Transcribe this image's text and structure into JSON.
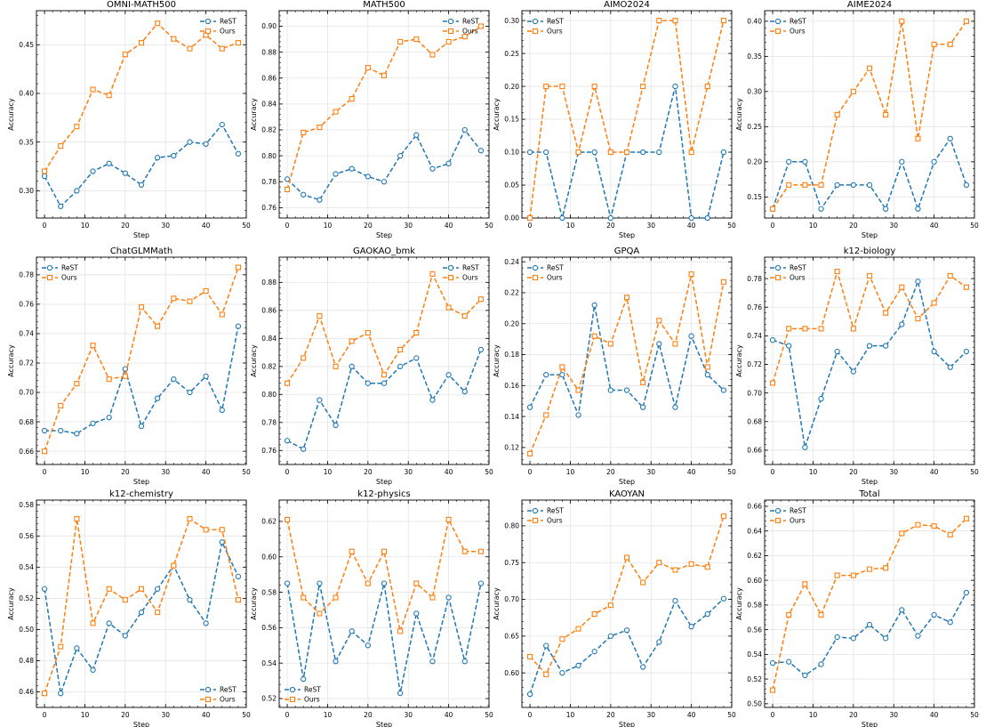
{
  "series_names": [
    "ReST",
    "Ours"
  ],
  "colors": {
    "rest": "#1f77b4",
    "ours": "#ff7f0e"
  },
  "chart_data": [
    {
      "type": "line",
      "title": "OMNI-MATH500",
      "xlabel": "Step",
      "ylabel": "Accuracy",
      "xlim": [
        -2,
        50
      ],
      "ylim": [
        0.272,
        0.485
      ],
      "xticks": [
        0,
        10,
        20,
        30,
        40,
        50
      ],
      "yticks": [
        0.3,
        0.35,
        0.4,
        0.45
      ],
      "ydecimals": 2,
      "legend": "top-right",
      "grid": true,
      "x": [
        0,
        4,
        8,
        12,
        16,
        20,
        24,
        28,
        32,
        36,
        40,
        44,
        48
      ],
      "series": [
        {
          "name": "ReST",
          "values": [
            0.315,
            0.284,
            0.3,
            0.32,
            0.328,
            0.318,
            0.306,
            0.334,
            0.336,
            0.35,
            0.348,
            0.368,
            0.338
          ]
        },
        {
          "name": "Ours",
          "values": [
            0.32,
            0.346,
            0.366,
            0.404,
            0.398,
            0.44,
            0.452,
            0.472,
            0.456,
            0.446,
            0.46,
            0.446,
            0.452
          ]
        }
      ]
    },
    {
      "type": "line",
      "title": "MATH500",
      "xlabel": "Step",
      "ylabel": "Accuracy",
      "xlim": [
        -2,
        50
      ],
      "ylim": [
        0.752,
        0.912
      ],
      "xticks": [
        0,
        10,
        20,
        30,
        40,
        50
      ],
      "yticks": [
        0.76,
        0.78,
        0.8,
        0.82,
        0.84,
        0.86,
        0.88,
        0.9
      ],
      "ydecimals": 2,
      "legend": "top-right",
      "grid": true,
      "x": [
        0,
        4,
        8,
        12,
        16,
        20,
        24,
        28,
        32,
        36,
        40,
        44,
        48
      ],
      "series": [
        {
          "name": "ReST",
          "values": [
            0.782,
            0.77,
            0.766,
            0.786,
            0.79,
            0.784,
            0.78,
            0.8,
            0.816,
            0.79,
            0.794,
            0.82,
            0.804
          ]
        },
        {
          "name": "Ours",
          "values": [
            0.774,
            0.818,
            0.822,
            0.834,
            0.844,
            0.868,
            0.862,
            0.888,
            0.89,
            0.878,
            0.888,
            0.892,
            0.9
          ]
        }
      ]
    },
    {
      "type": "line",
      "title": "AIMO2024",
      "xlabel": "Step",
      "ylabel": "Accuracy",
      "xlim": [
        -2,
        50
      ],
      "ylim": [
        0.0,
        0.315
      ],
      "xticks": [
        0,
        10,
        20,
        30,
        40,
        50
      ],
      "yticks": [
        0.0,
        0.05,
        0.1,
        0.15,
        0.2,
        0.25,
        0.3
      ],
      "ydecimals": 2,
      "legend": "top-left",
      "grid": true,
      "x": [
        0,
        4,
        8,
        12,
        16,
        20,
        24,
        28,
        32,
        36,
        40,
        44,
        48
      ],
      "series": [
        {
          "name": "ReST",
          "values": [
            0.1,
            0.1,
            0.0,
            0.1,
            0.1,
            0.0,
            0.1,
            0.1,
            0.1,
            0.2,
            0.0,
            0.0,
            0.1
          ]
        },
        {
          "name": "Ours",
          "values": [
            0.0,
            0.2,
            0.2,
            0.1,
            0.2,
            0.1,
            0.1,
            0.2,
            0.3,
            0.3,
            0.1,
            0.2,
            0.3
          ]
        }
      ]
    },
    {
      "type": "line",
      "title": "AIME2024",
      "xlabel": "Step",
      "ylabel": "Accuracy",
      "xlim": [
        -2,
        50
      ],
      "ylim": [
        0.12,
        0.415
      ],
      "xticks": [
        0,
        10,
        20,
        30,
        40,
        50
      ],
      "yticks": [
        0.15,
        0.2,
        0.25,
        0.3,
        0.35,
        0.4
      ],
      "ydecimals": 2,
      "legend": "top-left",
      "grid": true,
      "x": [
        0,
        4,
        8,
        12,
        16,
        20,
        24,
        28,
        32,
        36,
        40,
        44,
        48
      ],
      "series": [
        {
          "name": "ReST",
          "values": [
            0.133,
            0.2,
            0.2,
            0.133,
            0.167,
            0.167,
            0.167,
            0.133,
            0.2,
            0.133,
            0.2,
            0.233,
            0.167
          ]
        },
        {
          "name": "Ours",
          "values": [
            0.133,
            0.167,
            0.167,
            0.167,
            0.267,
            0.3,
            0.333,
            0.267,
            0.4,
            0.233,
            0.367,
            0.367,
            0.4
          ]
        }
      ]
    },
    {
      "type": "line",
      "title": "ChatGLMMath",
      "xlabel": "Step",
      "ylabel": "Accuracy",
      "xlim": [
        -2,
        50
      ],
      "ylim": [
        0.651,
        0.792
      ],
      "xticks": [
        0,
        10,
        20,
        30,
        40,
        50
      ],
      "yticks": [
        0.66,
        0.68,
        0.7,
        0.72,
        0.74,
        0.76,
        0.78
      ],
      "ydecimals": 2,
      "legend": "top-left",
      "grid": true,
      "x": [
        0,
        4,
        8,
        12,
        16,
        20,
        24,
        28,
        32,
        36,
        40,
        44,
        48
      ],
      "series": [
        {
          "name": "ReST",
          "values": [
            0.674,
            0.674,
            0.672,
            0.679,
            0.683,
            0.716,
            0.677,
            0.696,
            0.709,
            0.7,
            0.711,
            0.688,
            0.745
          ]
        },
        {
          "name": "Ours",
          "values": [
            0.66,
            0.691,
            0.706,
            0.732,
            0.709,
            0.711,
            0.758,
            0.745,
            0.764,
            0.762,
            0.769,
            0.753,
            0.785
          ]
        }
      ]
    },
    {
      "type": "line",
      "title": "GAOKAO_bmk",
      "xlabel": "Step",
      "ylabel": "Accuracy",
      "xlim": [
        -2,
        50
      ],
      "ylim": [
        0.75,
        0.898
      ],
      "xticks": [
        0,
        10,
        20,
        30,
        40,
        50
      ],
      "yticks": [
        0.76,
        0.78,
        0.8,
        0.82,
        0.84,
        0.86,
        0.88
      ],
      "ydecimals": 2,
      "legend": "top-right",
      "grid": true,
      "x": [
        0,
        4,
        8,
        12,
        16,
        20,
        24,
        28,
        32,
        36,
        40,
        44,
        48
      ],
      "series": [
        {
          "name": "ReST",
          "values": [
            0.767,
            0.761,
            0.796,
            0.778,
            0.82,
            0.808,
            0.808,
            0.82,
            0.826,
            0.796,
            0.814,
            0.802,
            0.832
          ]
        },
        {
          "name": "Ours",
          "values": [
            0.808,
            0.826,
            0.856,
            0.82,
            0.838,
            0.844,
            0.814,
            0.832,
            0.844,
            0.886,
            0.862,
            0.856,
            0.868
          ]
        }
      ]
    },
    {
      "type": "line",
      "title": "GPQA",
      "xlabel": "Step",
      "ylabel": "Accuracy",
      "xlim": [
        -2,
        50
      ],
      "ylim": [
        0.109,
        0.243
      ],
      "xticks": [
        0,
        10,
        20,
        30,
        40,
        50
      ],
      "yticks": [
        0.12,
        0.14,
        0.16,
        0.18,
        0.2,
        0.22,
        0.24
      ],
      "ydecimals": 2,
      "legend": "top-left",
      "grid": true,
      "x": [
        0,
        4,
        8,
        12,
        16,
        20,
        24,
        28,
        32,
        36,
        40,
        44,
        48
      ],
      "series": [
        {
          "name": "ReST",
          "values": [
            0.146,
            0.167,
            0.167,
            0.141,
            0.212,
            0.157,
            0.157,
            0.146,
            0.187,
            0.146,
            0.192,
            0.167,
            0.157
          ]
        },
        {
          "name": "Ours",
          "values": [
            0.116,
            0.141,
            0.172,
            0.157,
            0.192,
            0.187,
            0.217,
            0.162,
            0.202,
            0.187,
            0.232,
            0.172,
            0.227
          ]
        }
      ]
    },
    {
      "type": "line",
      "title": "k12-biology",
      "xlabel": "Step",
      "ylabel": "Accuracy",
      "xlim": [
        -2,
        50
      ],
      "ylim": [
        0.65,
        0.795
      ],
      "xticks": [
        0,
        10,
        20,
        30,
        40,
        50
      ],
      "yticks": [
        0.66,
        0.68,
        0.7,
        0.72,
        0.74,
        0.76,
        0.78
      ],
      "ydecimals": 2,
      "legend": "top-left",
      "grid": true,
      "x": [
        0,
        4,
        8,
        12,
        16,
        20,
        24,
        28,
        32,
        36,
        40,
        44,
        48
      ],
      "series": [
        {
          "name": "ReST",
          "values": [
            0.737,
            0.733,
            0.662,
            0.696,
            0.729,
            0.715,
            0.733,
            0.733,
            0.748,
            0.778,
            0.729,
            0.718,
            0.729
          ]
        },
        {
          "name": "Ours",
          "values": [
            0.707,
            0.745,
            0.745,
            0.745,
            0.785,
            0.745,
            0.782,
            0.756,
            0.774,
            0.752,
            0.763,
            0.782,
            0.774
          ]
        }
      ]
    },
    {
      "type": "line",
      "title": "k12-chemistry",
      "xlabel": "Step",
      "ylabel": "Accuracy",
      "xlim": [
        -2,
        50
      ],
      "ylim": [
        0.45,
        0.583
      ],
      "xticks": [
        0,
        10,
        20,
        30,
        40,
        50
      ],
      "yticks": [
        0.46,
        0.48,
        0.5,
        0.52,
        0.54,
        0.56,
        0.58
      ],
      "ydecimals": 2,
      "legend": "bottom-right",
      "grid": true,
      "x": [
        0,
        4,
        8,
        12,
        16,
        20,
        24,
        28,
        32,
        36,
        40,
        44,
        48
      ],
      "series": [
        {
          "name": "ReST",
          "values": [
            0.526,
            0.459,
            0.488,
            0.474,
            0.504,
            0.496,
            0.511,
            0.526,
            0.541,
            0.519,
            0.504,
            0.556,
            0.534
          ]
        },
        {
          "name": "Ours",
          "values": [
            0.459,
            0.489,
            0.571,
            0.504,
            0.526,
            0.519,
            0.526,
            0.511,
            0.541,
            0.571,
            0.564,
            0.564,
            0.519
          ]
        }
      ]
    },
    {
      "type": "line",
      "title": "k12-physics",
      "xlabel": "Step",
      "ylabel": "Accuracy",
      "xlim": [
        -2,
        50
      ],
      "ylim": [
        0.515,
        0.632
      ],
      "xticks": [
        0,
        10,
        20,
        30,
        40,
        50
      ],
      "yticks": [
        0.52,
        0.54,
        0.56,
        0.58,
        0.6,
        0.62
      ],
      "ydecimals": 2,
      "legend": "bottom-left",
      "grid": true,
      "x": [
        0,
        4,
        8,
        12,
        16,
        20,
        24,
        28,
        32,
        36,
        40,
        44,
        48
      ],
      "series": [
        {
          "name": "ReST",
          "values": [
            0.585,
            0.531,
            0.585,
            0.541,
            0.558,
            0.55,
            0.585,
            0.523,
            0.568,
            0.541,
            0.577,
            0.541,
            0.585
          ]
        },
        {
          "name": "Ours",
          "values": [
            0.621,
            0.577,
            0.568,
            0.577,
            0.603,
            0.585,
            0.603,
            0.558,
            0.585,
            0.577,
            0.621,
            0.603,
            0.603
          ]
        }
      ]
    },
    {
      "type": "line",
      "title": "KAOYAN",
      "xlabel": "Step",
      "ylabel": "Accuracy",
      "xlim": [
        -2,
        50
      ],
      "ylim": [
        0.553,
        0.835
      ],
      "xticks": [
        0,
        10,
        20,
        30,
        40,
        50
      ],
      "yticks": [
        0.55,
        0.6,
        0.65,
        0.7,
        0.75,
        0.8
      ],
      "ydecimals": 2,
      "legend": "top-left",
      "grid": true,
      "x": [
        0,
        4,
        8,
        12,
        16,
        20,
        24,
        28,
        32,
        36,
        40,
        44,
        48
      ],
      "series": [
        {
          "name": "ReST",
          "values": [
            0.571,
            0.637,
            0.6,
            0.61,
            0.629,
            0.65,
            0.658,
            0.608,
            0.642,
            0.698,
            0.663,
            0.68,
            0.701
          ]
        },
        {
          "name": "Ours",
          "values": [
            0.622,
            0.598,
            0.646,
            0.66,
            0.68,
            0.692,
            0.757,
            0.723,
            0.75,
            0.74,
            0.748,
            0.744,
            0.813
          ]
        }
      ]
    },
    {
      "type": "line",
      "title": "Total",
      "xlabel": "Step",
      "ylabel": "Accuracy",
      "xlim": [
        -2,
        50
      ],
      "ylim": [
        0.497,
        0.665
      ],
      "xticks": [
        0,
        10,
        20,
        30,
        40,
        50
      ],
      "yticks": [
        0.5,
        0.52,
        0.54,
        0.56,
        0.58,
        0.6,
        0.62,
        0.64,
        0.66
      ],
      "ydecimals": 2,
      "legend": "top-left",
      "grid": true,
      "x": [
        0,
        4,
        8,
        12,
        16,
        20,
        24,
        28,
        32,
        36,
        40,
        44,
        48
      ],
      "series": [
        {
          "name": "ReST",
          "values": [
            0.533,
            0.534,
            0.523,
            0.532,
            0.554,
            0.553,
            0.564,
            0.553,
            0.576,
            0.555,
            0.572,
            0.566,
            0.59
          ]
        },
        {
          "name": "Ours",
          "values": [
            0.511,
            0.572,
            0.597,
            0.572,
            0.604,
            0.604,
            0.609,
            0.61,
            0.638,
            0.645,
            0.644,
            0.637,
            0.65
          ]
        }
      ]
    }
  ]
}
